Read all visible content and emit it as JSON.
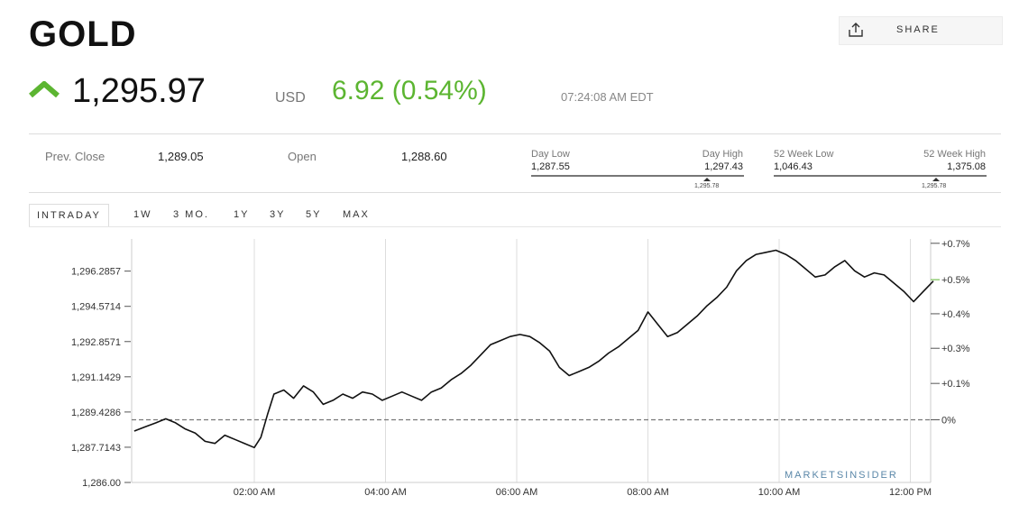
{
  "header": {
    "title": "GOLD",
    "share_label": "SHARE",
    "share_icon": "share-icon"
  },
  "quote": {
    "price": "1,295.97",
    "currency": "USD",
    "change": "6.92 (0.54%)",
    "time": "07:24:08 AM EDT",
    "direction_icon": "arrow-up-icon",
    "accent_color": "#5cb531"
  },
  "stats": {
    "prev_close_label": "Prev. Close",
    "prev_close": "1,289.05",
    "open_label": "Open",
    "open": "1,288.60",
    "day_low_label": "Day Low",
    "day_low": "1,287.55",
    "day_high_label": "Day High",
    "day_high": "1,297.43",
    "day_marker": "1,295.78",
    "week52_low_label": "52 Week Low",
    "week52_low": "1,046.43",
    "week52_high_label": "52 Week High",
    "week52_high": "1,375.08",
    "week52_marker": "1,295.78"
  },
  "tabs": [
    {
      "label": "INTRADAY",
      "active": true
    },
    {
      "label": "1W",
      "active": false
    },
    {
      "label": "3 MO.",
      "active": false
    },
    {
      "label": "1Y",
      "active": false
    },
    {
      "label": "3Y",
      "active": false
    },
    {
      "label": "5Y",
      "active": false
    },
    {
      "label": "MAX",
      "active": false
    }
  ],
  "chart_data": {
    "type": "line",
    "title": "",
    "xlabel": "",
    "ylabel": "",
    "x_ticks": [
      "02:00 AM",
      "04:00 AM",
      "06:00 AM",
      "08:00 AM",
      "10:00 AM",
      "12:00 PM"
    ],
    "y_ticks": [
      1286.0,
      1287.7143,
      1289.4286,
      1291.1429,
      1292.8571,
      1294.5714,
      1296.2857
    ],
    "y_tick_labels": [
      "1,286.00",
      "1,287.7143",
      "1,289.4286",
      "1,291.1429",
      "1,292.8571",
      "1,294.5714",
      "1,296.2857"
    ],
    "ylim": [
      1286.0,
      1297.85
    ],
    "xlim_hours": [
      0.17,
      12.4
    ],
    "x_tick_hours": [
      2,
      4,
      6,
      8,
      10,
      12
    ],
    "right_axis": {
      "labels": [
        "+0.7%",
        "+0.5%",
        "+0.4%",
        "+0.3%",
        "+0.1%",
        "0%"
      ],
      "values": [
        1297.64,
        1295.87,
        1294.21,
        1292.53,
        1290.82,
        1289.05
      ],
      "highlight_index": 1,
      "highlight_color": "#5cb531"
    },
    "reference_line": {
      "value": 1289.05,
      "style": "dashed"
    },
    "grid": true,
    "brand": "MARKETSINSIDER",
    "series": [
      {
        "x": [
          0.17,
          0.33,
          0.5,
          0.65,
          0.8,
          0.95,
          1.1,
          1.25,
          1.4,
          1.55,
          1.7,
          1.85,
          2.0,
          2.1,
          2.2,
          2.3,
          2.45,
          2.6,
          2.75,
          2.9,
          3.05,
          3.2,
          3.35,
          3.5,
          3.65,
          3.8,
          3.95,
          4.1,
          4.25,
          4.4,
          4.55,
          4.7,
          4.85,
          5.0,
          5.15,
          5.3,
          5.45,
          5.6,
          5.75,
          5.9,
          6.05,
          6.2,
          6.35,
          6.5,
          6.65,
          6.8,
          6.95,
          7.1,
          7.25,
          7.4,
          7.55,
          7.7,
          7.85,
          8.0,
          8.15,
          8.3,
          8.45,
          8.6,
          8.75,
          8.9,
          9.05,
          9.2,
          9.35,
          9.5,
          9.65,
          9.8,
          9.95,
          10.1,
          10.25,
          10.4,
          10.55,
          10.7,
          10.85,
          11.0,
          11.15,
          11.3,
          11.45,
          11.6,
          11.75,
          11.9,
          12.05,
          12.2,
          12.35
        ],
        "y": [
          1288.5,
          1288.7,
          1288.9,
          1289.1,
          1288.9,
          1288.6,
          1288.4,
          1288.0,
          1287.9,
          1288.3,
          1288.1,
          1287.9,
          1287.7,
          1288.2,
          1289.3,
          1290.3,
          1290.5,
          1290.1,
          1290.7,
          1290.4,
          1289.8,
          1290.0,
          1290.3,
          1290.1,
          1290.4,
          1290.3,
          1290.0,
          1290.2,
          1290.4,
          1290.2,
          1290.0,
          1290.4,
          1290.6,
          1291.0,
          1291.3,
          1291.7,
          1292.2,
          1292.7,
          1292.9,
          1293.1,
          1293.2,
          1293.1,
          1292.8,
          1292.4,
          1291.6,
          1291.2,
          1291.4,
          1291.6,
          1291.9,
          1292.3,
          1292.6,
          1293.0,
          1293.4,
          1294.3,
          1293.7,
          1293.1,
          1293.3,
          1293.7,
          1294.1,
          1294.6,
          1295.0,
          1295.5,
          1296.3,
          1296.8,
          1297.1,
          1297.2,
          1297.3,
          1297.1,
          1296.8,
          1296.4,
          1296.0,
          1296.1,
          1296.5,
          1296.8,
          1296.3,
          1296.0,
          1296.2,
          1296.1,
          1295.7,
          1295.3,
          1294.8,
          1295.3,
          1295.8
        ]
      }
    ]
  }
}
